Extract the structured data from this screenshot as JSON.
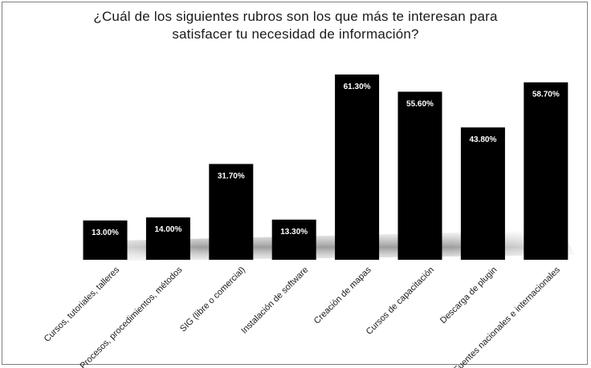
{
  "chart_data": {
    "type": "bar",
    "title_line1": "¿Cuál de los siguientes rubros son los que más te interesan para",
    "title_line2": "satisfacer tu necesidad de información?",
    "categories": [
      "Cursos, tutoriales, talleres",
      "Procesos, procedimientos, métodos",
      "SIG (libre o comercial)",
      "Instalación de software",
      "Creación de mapas",
      "Cursos de  capacitación",
      "Descarga de plugin",
      "Fuentes nacionales e internacionales"
    ],
    "values": [
      13.0,
      14.0,
      31.7,
      13.3,
      61.3,
      55.6,
      43.8,
      58.7
    ],
    "value_labels": [
      "13.00%",
      "14.00%",
      "31.70%",
      "13.30%",
      "61.30%",
      "55.60%",
      "43.80%",
      "58.70%"
    ],
    "bar_color": "#000000",
    "label_color": "#ffffff",
    "ylim": [
      0,
      65
    ],
    "grid": false,
    "legend": "none"
  }
}
